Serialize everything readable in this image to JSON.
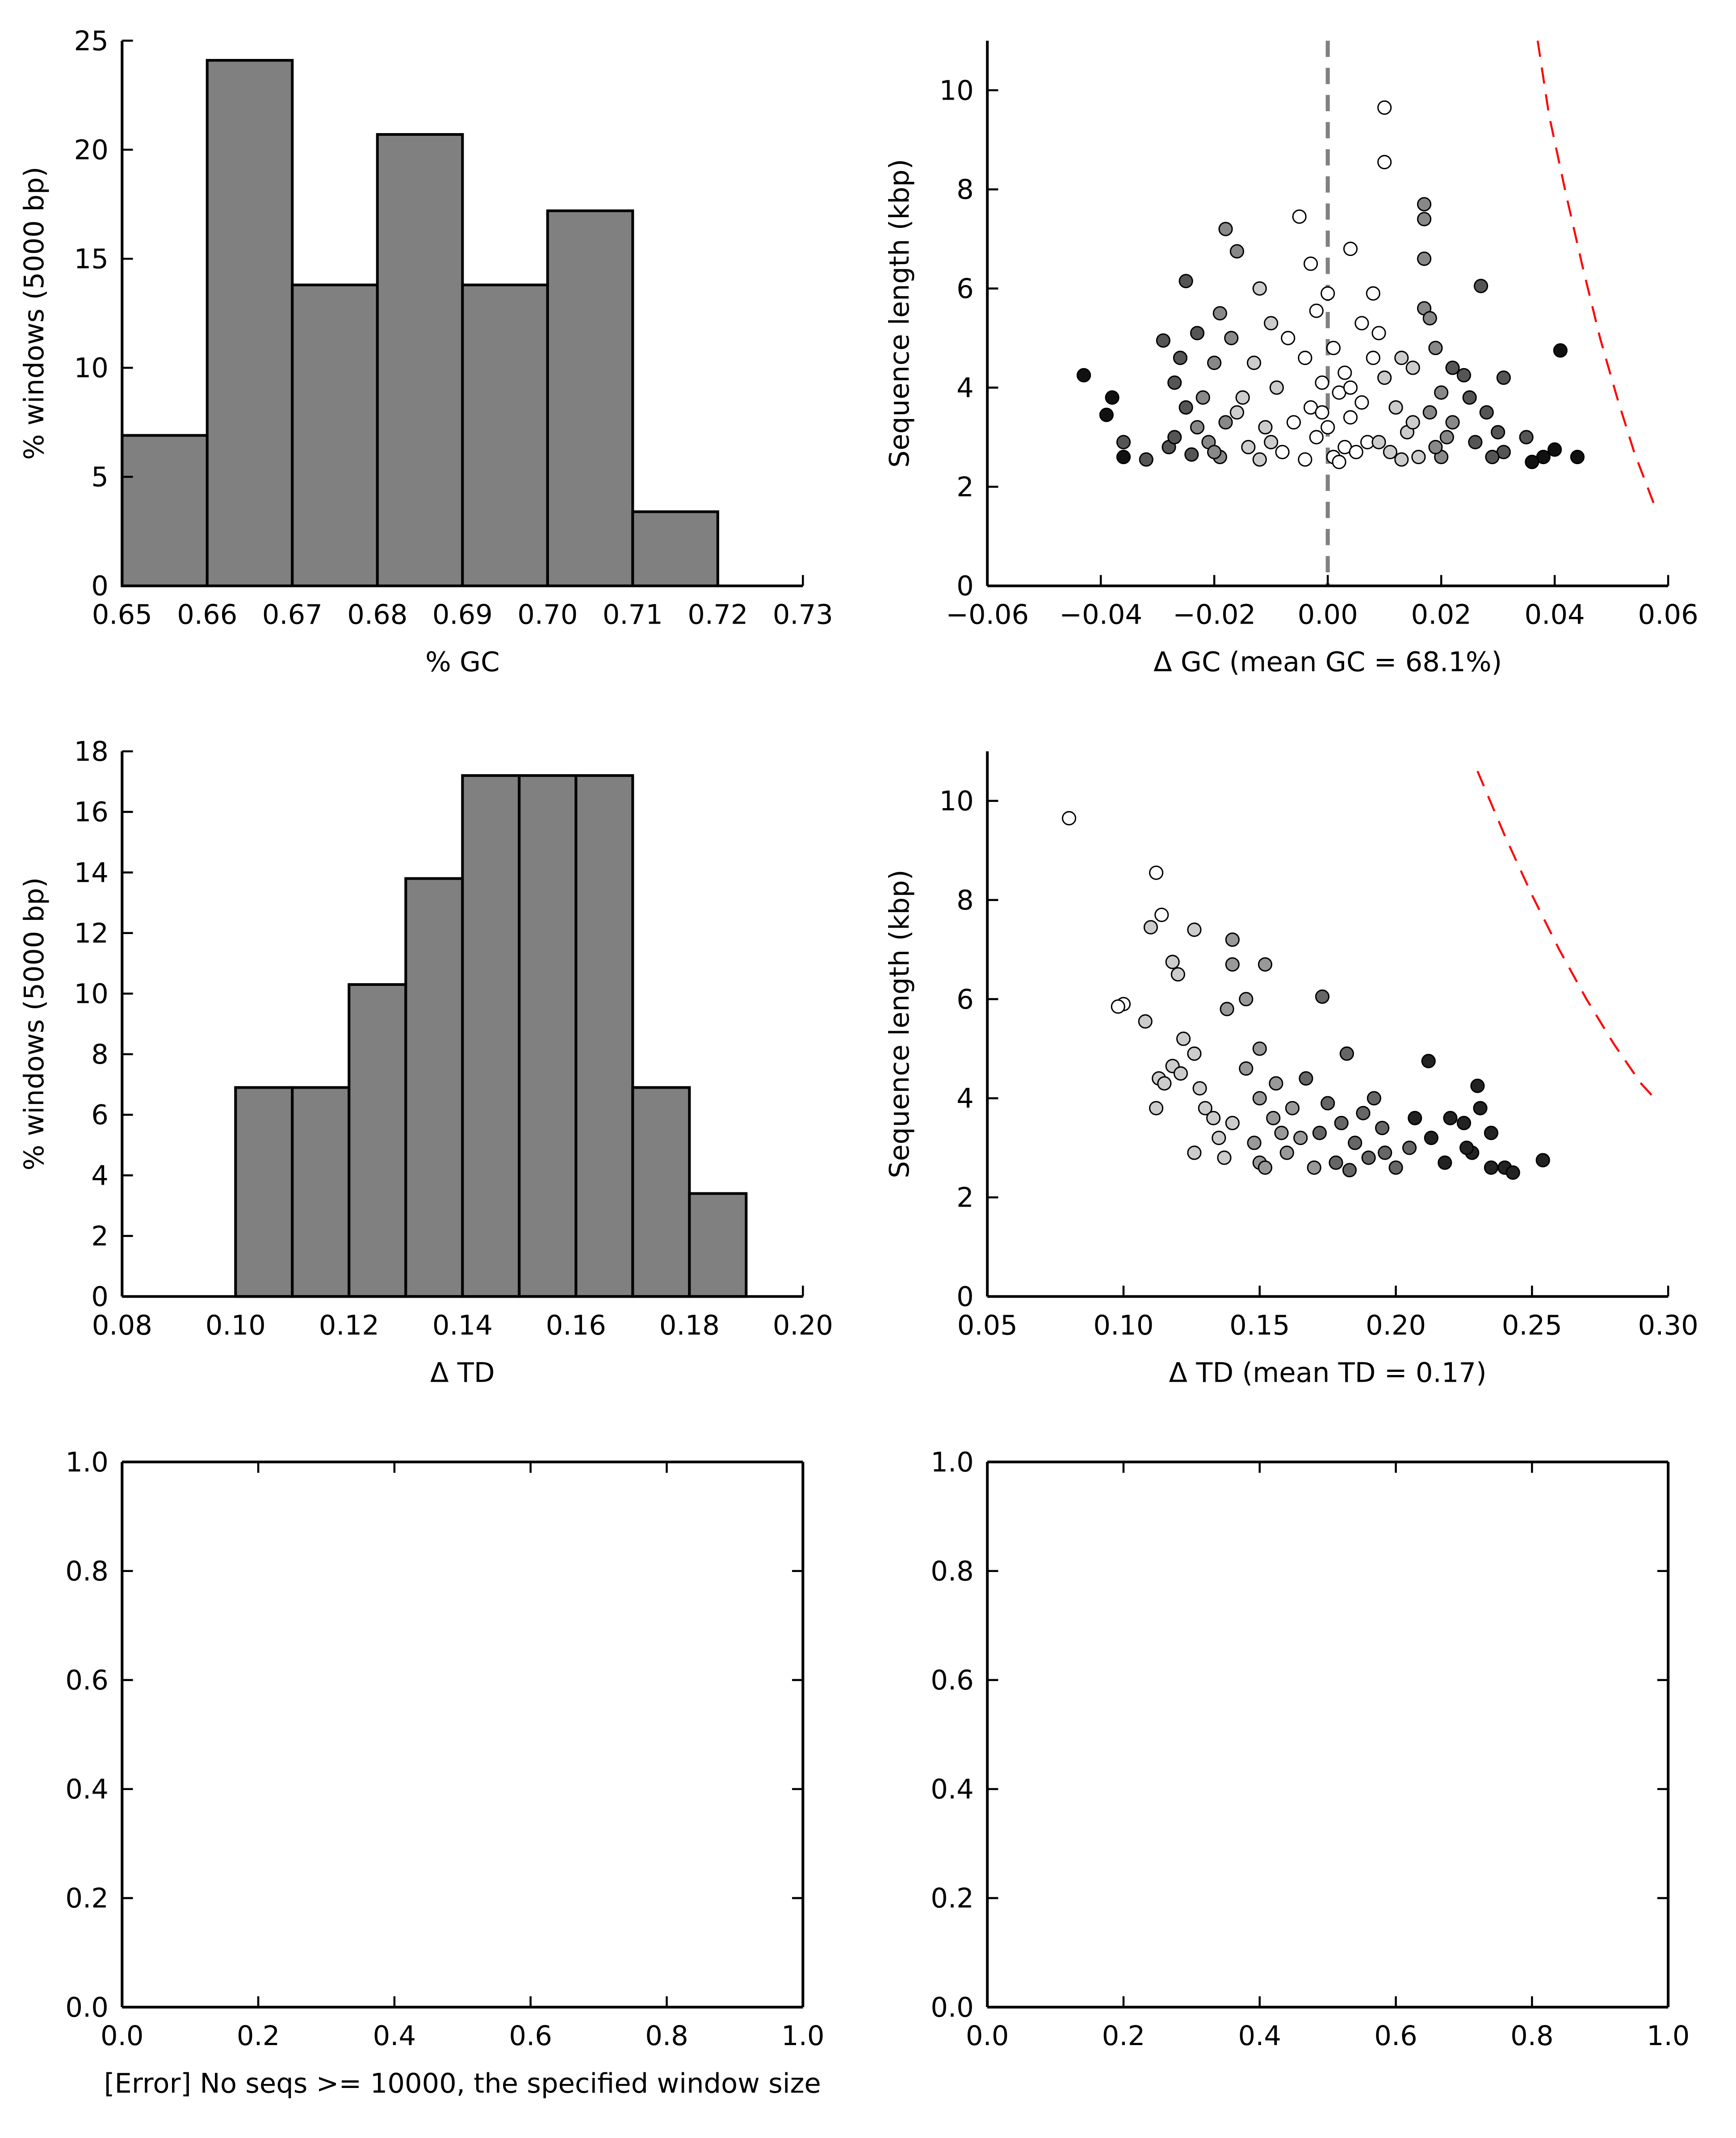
{
  "chart_data": [
    {
      "type": "histogram",
      "color": "#808080",
      "xlabel": "% GC",
      "ylabel": "% windows (5000 bp)",
      "bins": [
        0.65,
        0.66,
        0.67,
        0.68,
        0.69,
        0.7,
        0.71,
        0.72
      ],
      "values": [
        6.9,
        24.1,
        13.8,
        20.7,
        13.8,
        17.2,
        3.4
      ],
      "xlim": [
        0.65,
        0.73
      ],
      "xticks": [
        0.65,
        0.66,
        0.67,
        0.68,
        0.69,
        {
          "value": 0.7,
          "label": "0.70"
        },
        0.71,
        0.72,
        0.73
      ],
      "ylim": [
        0,
        25
      ],
      "yticks": [
        0,
        5,
        10,
        15,
        20,
        25
      ]
    },
    {
      "type": "scatter",
      "xlabel": "Δ GC (mean GC = 68.1%)",
      "ylabel": "Sequence length (kbp)",
      "vline": 0,
      "xlim": [
        -0.06,
        0.06
      ],
      "xticks": [
        {
          "value": -0.06,
          "label": "−0.06"
        },
        {
          "value": -0.04,
          "label": "−0.04"
        },
        {
          "value": -0.02,
          "label": "−0.02"
        },
        {
          "value": 0,
          "label": "0.00"
        },
        0.02,
        0.04,
        0.06
      ],
      "ylim": [
        0,
        11
      ],
      "yticks": [
        0,
        2,
        4,
        6,
        8,
        10
      ],
      "curve": {
        "color": "#ff0000",
        "x": [
          0.037,
          0.039,
          0.042,
          0.045,
          0.048,
          0.051,
          0.054,
          0.058
        ],
        "values": [
          11.0,
          9.5,
          7.9,
          6.4,
          5.0,
          3.8,
          2.7,
          1.5
        ]
      },
      "series": [
        {
          "color": "#ffffff",
          "x": [
            0.01,
            0.01,
            -0.005,
            0.004,
            -0.003,
            0.0,
            0.008,
            -0.002,
            0.006,
            0.001,
            -0.004,
            0.003,
            -0.001,
            0.002,
            -0.003,
            0.004,
            0.0,
            -0.002,
            0.003,
            0.001,
            -0.004,
            0.005,
            0.008,
            -0.007,
            0.009,
            0.006,
            -0.006,
            0.007,
            -0.008,
            0.002,
            -0.001,
            0.004
          ],
          "values": [
            9.65,
            8.55,
            7.45,
            6.8,
            6.5,
            5.9,
            5.9,
            5.55,
            5.3,
            4.8,
            4.6,
            4.3,
            4.1,
            3.9,
            3.6,
            3.4,
            3.2,
            3.0,
            2.8,
            2.6,
            2.55,
            2.7,
            4.6,
            5.0,
            5.1,
            3.7,
            3.3,
            2.9,
            2.7,
            2.5,
            3.5,
            4.0
          ]
        },
        {
          "color": "#cccccc",
          "x": [
            -0.012,
            -0.01,
            -0.013,
            0.013,
            0.015,
            -0.015,
            0.012,
            -0.011,
            0.014,
            -0.014,
            0.011,
            -0.012,
            0.016,
            -0.009,
            0.01,
            -0.016,
            0.015,
            0.009,
            -0.01,
            0.013
          ],
          "values": [
            6.0,
            5.3,
            4.5,
            4.6,
            4.4,
            3.8,
            3.6,
            3.2,
            3.1,
            2.8,
            2.7,
            2.55,
            2.6,
            4.0,
            4.2,
            3.5,
            3.3,
            2.9,
            2.9,
            2.55
          ]
        },
        {
          "color": "#888888",
          "x": [
            -0.018,
            -0.016,
            -0.019,
            -0.017,
            0.017,
            0.018,
            -0.02,
            0.019,
            -0.022,
            0.02,
            -0.018,
            0.018,
            -0.021,
            0.021,
            -0.019,
            0.02,
            -0.023,
            0.022,
            0.017,
            0.017,
            0.017,
            -0.02,
            0.019
          ],
          "values": [
            7.2,
            6.75,
            5.5,
            5.0,
            5.6,
            5.4,
            4.5,
            4.8,
            3.8,
            3.9,
            3.3,
            3.5,
            2.9,
            3.0,
            2.6,
            2.6,
            3.2,
            3.3,
            6.6,
            7.4,
            7.7,
            2.7,
            2.8
          ]
        },
        {
          "color": "#555555",
          "x": [
            -0.025,
            -0.023,
            -0.029,
            -0.026,
            0.027,
            0.022,
            0.024,
            -0.027,
            0.025,
            0.028,
            -0.025,
            -0.028,
            0.03,
            0.031,
            -0.032,
            0.031,
            -0.036,
            0.035,
            -0.024,
            0.029,
            0.026,
            -0.027
          ],
          "values": [
            6.15,
            5.1,
            4.95,
            4.6,
            6.05,
            4.4,
            4.25,
            4.1,
            3.8,
            3.5,
            3.6,
            2.8,
            3.1,
            4.2,
            2.55,
            2.7,
            2.9,
            3.0,
            2.65,
            2.6,
            2.9,
            3.0
          ]
        },
        {
          "color": "#111111",
          "x": [
            -0.043,
            -0.038,
            -0.039,
            -0.036,
            0.041,
            0.044,
            0.04,
            0.038,
            0.036
          ],
          "values": [
            4.25,
            3.8,
            3.45,
            2.6,
            4.75,
            2.6,
            2.75,
            2.6,
            2.5
          ]
        }
      ]
    },
    {
      "type": "histogram",
      "color": "#808080",
      "xlabel": "Δ TD",
      "ylabel": "% windows (5000 bp)",
      "bins": [
        0.1,
        0.11,
        0.12,
        0.13,
        0.14,
        0.15,
        0.16,
        0.17,
        0.18,
        0.19
      ],
      "values": [
        6.9,
        6.9,
        10.3,
        13.8,
        17.2,
        17.2,
        17.2,
        6.9,
        3.4
      ],
      "xlim": [
        0.08,
        0.2
      ],
      "xticks": [
        0.08,
        {
          "value": 0.1,
          "label": "0.10"
        },
        0.12,
        0.14,
        0.16,
        0.18,
        {
          "value": 0.2,
          "label": "0.20"
        }
      ],
      "ylim": [
        0,
        18
      ],
      "yticks": [
        0,
        2,
        4,
        6,
        8,
        10,
        12,
        14,
        16,
        18
      ]
    },
    {
      "type": "scatter",
      "xlabel": "Δ TD (mean TD = 0.17)",
      "ylabel": "Sequence length (kbp)",
      "xlim": [
        0.05,
        0.3
      ],
      "xticks": [
        0.05,
        {
          "value": 0.1,
          "label": "0.10"
        },
        0.15,
        {
          "value": 0.2,
          "label": "0.20"
        },
        0.25,
        {
          "value": 0.3,
          "label": "0.30"
        }
      ],
      "ylim": [
        0,
        11
      ],
      "yticks": [
        0,
        2,
        4,
        6,
        8,
        10
      ],
      "curve": {
        "color": "#ff0000",
        "x": [
          0.23,
          0.24,
          0.25,
          0.26,
          0.27,
          0.28,
          0.29,
          0.295
        ],
        "values": [
          10.6,
          9.3,
          8.1,
          7.0,
          6.0,
          5.1,
          4.3,
          4.0
        ]
      },
      "series": [
        {
          "color": "#ffffff",
          "x": [
            0.08,
            0.1,
            0.098,
            0.112,
            0.114
          ],
          "values": [
            9.65,
            5.9,
            5.85,
            8.55,
            7.7
          ]
        },
        {
          "color": "#cccccc",
          "x": [
            0.11,
            0.126,
            0.118,
            0.12,
            0.108,
            0.122,
            0.118,
            0.113,
            0.112,
            0.126,
            0.128,
            0.13,
            0.126,
            0.135,
            0.133,
            0.121,
            0.137,
            0.14,
            0.115
          ],
          "values": [
            7.45,
            7.4,
            6.75,
            6.5,
            5.55,
            5.2,
            4.65,
            4.4,
            3.8,
            4.9,
            4.2,
            3.8,
            2.9,
            3.2,
            3.6,
            4.5,
            2.8,
            3.5,
            4.3
          ]
        },
        {
          "color": "#999999",
          "x": [
            0.14,
            0.14,
            0.152,
            0.145,
            0.138,
            0.15,
            0.145,
            0.15,
            0.155,
            0.158,
            0.15,
            0.16,
            0.162,
            0.148,
            0.17,
            0.165,
            0.152,
            0.156
          ],
          "values": [
            7.2,
            6.7,
            6.7,
            6.0,
            5.8,
            5.0,
            4.6,
            4.0,
            3.6,
            3.3,
            2.7,
            2.9,
            3.8,
            3.1,
            2.6,
            3.2,
            2.6,
            4.3
          ]
        },
        {
          "color": "#666666",
          "x": [
            0.173,
            0.182,
            0.175,
            0.18,
            0.185,
            0.19,
            0.195,
            0.2,
            0.178,
            0.188,
            0.196,
            0.172,
            0.183,
            0.205,
            0.192,
            0.167
          ],
          "values": [
            6.05,
            4.9,
            3.9,
            3.5,
            3.1,
            2.8,
            3.4,
            2.6,
            2.7,
            3.7,
            2.9,
            3.3,
            2.55,
            3.0,
            4.0,
            4.4
          ]
        },
        {
          "color": "#222222",
          "x": [
            0.212,
            0.213,
            0.22,
            0.225,
            0.23,
            0.231,
            0.235,
            0.228,
            0.235,
            0.24,
            0.243,
            0.254,
            0.218,
            0.207,
            0.226
          ],
          "values": [
            4.75,
            3.2,
            3.6,
            3.5,
            4.25,
            3.8,
            3.3,
            2.9,
            2.6,
            2.6,
            2.5,
            2.75,
            2.7,
            3.6,
            3.0
          ]
        }
      ]
    },
    {
      "type": "empty",
      "frame": true,
      "xlabel": "[Error] No seqs >= 10000, the specified window size",
      "xlim": [
        0,
        1
      ],
      "xticks": [
        {
          "value": 0,
          "label": "0.0"
        },
        0.2,
        0.4,
        0.6,
        0.8,
        {
          "value": 1,
          "label": "1.0"
        }
      ],
      "ylim": [
        0,
        1
      ],
      "yticks": [
        {
          "value": 0,
          "label": "0.0"
        },
        0.2,
        0.4,
        0.6,
        0.8,
        {
          "value": 1,
          "label": "1.0"
        }
      ]
    },
    {
      "type": "empty",
      "frame": true,
      "xlim": [
        0,
        1
      ],
      "xticks": [
        {
          "value": 0,
          "label": "0.0"
        },
        0.2,
        0.4,
        0.6,
        0.8,
        {
          "value": 1,
          "label": "1.0"
        }
      ],
      "ylim": [
        0,
        1
      ],
      "yticks": [
        {
          "value": 0,
          "label": "0.0"
        },
        0.2,
        0.4,
        0.6,
        0.8,
        {
          "value": 1,
          "label": "1.0"
        }
      ]
    }
  ]
}
